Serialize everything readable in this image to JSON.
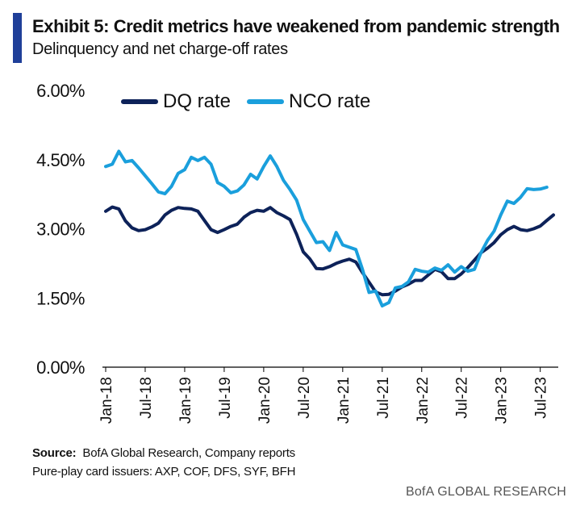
{
  "header": {
    "title": "Exhibit 5: Credit metrics have weakened from pandemic strength",
    "subtitle": "Delinquency and net charge-off rates",
    "accent_color": "#1f3f99"
  },
  "footer": {
    "source_label": "Source:",
    "source_text": "BofA Global Research, Company reports",
    "note": "Pure-play card issuers: AXP, COF, DFS, SYF, BFH",
    "brand": "BofA GLOBAL RESEARCH"
  },
  "chart_data": {
    "type": "line",
    "title": "Credit metrics have weakened from pandemic strength",
    "xlabel": "",
    "ylabel": "",
    "ylim": [
      0,
      6
    ],
    "y_ticks": [
      {
        "value": 0.0,
        "label": "0.00%"
      },
      {
        "value": 1.5,
        "label": "1.50%"
      },
      {
        "value": 3.0,
        "label": "3.00%"
      },
      {
        "value": 4.5,
        "label": "4.50%"
      },
      {
        "value": 6.0,
        "label": "6.00%"
      }
    ],
    "x_ticks": [
      {
        "index": 0,
        "label": "Jan-18"
      },
      {
        "index": 6,
        "label": "Jul-18"
      },
      {
        "index": 12,
        "label": "Jan-19"
      },
      {
        "index": 18,
        "label": "Jul-19"
      },
      {
        "index": 24,
        "label": "Jan-20"
      },
      {
        "index": 30,
        "label": "Jul-20"
      },
      {
        "index": 36,
        "label": "Jan-21"
      },
      {
        "index": 42,
        "label": "Jul-21"
      },
      {
        "index": 48,
        "label": "Jan-22"
      },
      {
        "index": 54,
        "label": "Jul-22"
      },
      {
        "index": 60,
        "label": "Jan-23"
      },
      {
        "index": 66,
        "label": "Jul-23"
      }
    ],
    "x_start": "Jan-18",
    "x_frequency": "monthly",
    "grid": false,
    "legend_position": "top-center",
    "series": [
      {
        "name": "DQ rate",
        "color": "#0d2259",
        "values": [
          3.38,
          3.47,
          3.43,
          3.17,
          3.02,
          2.96,
          2.98,
          3.04,
          3.12,
          3.3,
          3.4,
          3.46,
          3.44,
          3.43,
          3.38,
          3.18,
          2.98,
          2.92,
          2.98,
          3.05,
          3.1,
          3.25,
          3.35,
          3.4,
          3.38,
          3.46,
          3.35,
          3.28,
          3.2,
          2.88,
          2.5,
          2.35,
          2.14,
          2.13,
          2.18,
          2.25,
          2.3,
          2.34,
          2.28,
          2.05,
          1.84,
          1.63,
          1.57,
          1.58,
          1.65,
          1.74,
          1.8,
          1.88,
          1.88,
          2.0,
          2.12,
          2.07,
          1.92,
          1.92,
          2.02,
          2.16,
          2.32,
          2.48,
          2.58,
          2.7,
          2.87,
          2.98,
          3.05,
          2.98,
          2.96,
          3.0,
          3.06,
          3.18,
          3.3
        ]
      },
      {
        "name": "NCO rate",
        "color": "#1a9fdc",
        "values": [
          4.35,
          4.4,
          4.68,
          4.45,
          4.48,
          4.32,
          4.15,
          3.98,
          3.8,
          3.76,
          3.92,
          4.2,
          4.28,
          4.55,
          4.48,
          4.55,
          4.4,
          4.0,
          3.92,
          3.78,
          3.82,
          3.95,
          4.18,
          4.08,
          4.35,
          4.58,
          4.35,
          4.05,
          3.85,
          3.62,
          3.2,
          2.95,
          2.7,
          2.72,
          2.53,
          2.92,
          2.65,
          2.6,
          2.55,
          2.12,
          1.62,
          1.65,
          1.33,
          1.4,
          1.72,
          1.75,
          1.85,
          2.12,
          2.08,
          2.06,
          2.15,
          2.1,
          2.22,
          2.06,
          2.18,
          2.08,
          2.12,
          2.48,
          2.75,
          2.95,
          3.3,
          3.6,
          3.55,
          3.68,
          3.87,
          3.85,
          3.86,
          3.9
        ]
      }
    ]
  }
}
